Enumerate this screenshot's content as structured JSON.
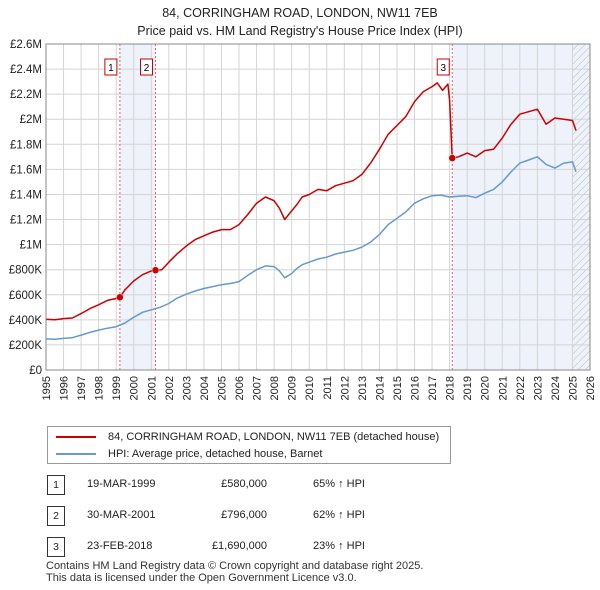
{
  "title_line1": "84, CORRINGHAM ROAD, LONDON, NW11 7EB",
  "title_line2": "Price paid vs. HM Land Registry's House Price Index (HPI)",
  "chart_data": {
    "type": "line",
    "title": "84, CORRINGHAM ROAD, LONDON, NW11 7EB — Price paid vs. HM Land Registry's House Price Index (HPI)",
    "xlim": [
      1995,
      2026
    ],
    "ylim": [
      0,
      2600000
    ],
    "x_ticks": [
      1995,
      1996,
      1997,
      1998,
      1999,
      2000,
      2001,
      2002,
      2003,
      2004,
      2005,
      2006,
      2007,
      2008,
      2009,
      2010,
      2011,
      2012,
      2013,
      2014,
      2015,
      2016,
      2017,
      2018,
      2019,
      2020,
      2021,
      2022,
      2023,
      2024,
      2025,
      2026
    ],
    "y_ticks": [
      {
        "value": 0,
        "label": "£0"
      },
      {
        "value": 200000,
        "label": "£200K"
      },
      {
        "value": 400000,
        "label": "£400K"
      },
      {
        "value": 600000,
        "label": "£600K"
      },
      {
        "value": 800000,
        "label": "£800K"
      },
      {
        "value": 1000000,
        "label": "£1M"
      },
      {
        "value": 1200000,
        "label": "£1.2M"
      },
      {
        "value": 1400000,
        "label": "£1.4M"
      },
      {
        "value": 1600000,
        "label": "£1.6M"
      },
      {
        "value": 1800000,
        "label": "£1.8M"
      },
      {
        "value": 2000000,
        "label": "£2M"
      },
      {
        "value": 2200000,
        "label": "£2.2M"
      },
      {
        "value": 2400000,
        "label": "£2.4M"
      },
      {
        "value": 2600000,
        "label": "£2.6M"
      }
    ],
    "colors": {
      "property": "#cc0000",
      "hpi": "#6699cc",
      "shade": "#eef2fb",
      "grid": "#d4d4d4"
    },
    "series": [
      {
        "name": "84, CORRINGHAM ROAD, LONDON, NW11 7EB (detached house)",
        "color": "#cc0000",
        "x": [
          1995.0,
          1995.5,
          1996.0,
          1996.5,
          1997.0,
          1997.5,
          1998.0,
          1998.5,
          1999.0,
          1999.21,
          1999.5,
          2000.0,
          2000.5,
          2001.0,
          2001.24,
          2001.6,
          2002.0,
          2002.5,
          2003.0,
          2003.5,
          2004.0,
          2004.5,
          2005.0,
          2005.5,
          2006.0,
          2006.5,
          2007.0,
          2007.5,
          2008.0,
          2008.3,
          2008.6,
          2009.0,
          2009.3,
          2009.6,
          2010.0,
          2010.5,
          2011.0,
          2011.5,
          2012.0,
          2012.5,
          2013.0,
          2013.5,
          2014.0,
          2014.5,
          2015.0,
          2015.5,
          2016.0,
          2016.5,
          2017.0,
          2017.3,
          2017.6,
          2017.9,
          2018.0,
          2018.15,
          2018.5,
          2019.0,
          2019.5,
          2020.0,
          2020.5,
          2021.0,
          2021.5,
          2022.0,
          2022.5,
          2023.0,
          2023.5,
          2024.0,
          2024.5,
          2025.0,
          2025.2
        ],
        "values": [
          405000,
          400000,
          410000,
          415000,
          450000,
          490000,
          520000,
          555000,
          570000,
          580000,
          640000,
          710000,
          760000,
          790000,
          796000,
          800000,
          860000,
          930000,
          990000,
          1040000,
          1070000,
          1100000,
          1120000,
          1120000,
          1160000,
          1240000,
          1330000,
          1380000,
          1350000,
          1290000,
          1200000,
          1270000,
          1320000,
          1380000,
          1400000,
          1440000,
          1430000,
          1470000,
          1490000,
          1510000,
          1560000,
          1650000,
          1760000,
          1880000,
          1950000,
          2020000,
          2140000,
          2220000,
          2260000,
          2290000,
          2230000,
          2280000,
          2150000,
          1690000,
          1700000,
          1730000,
          1700000,
          1750000,
          1760000,
          1850000,
          1960000,
          2040000,
          2060000,
          2080000,
          1960000,
          2010000,
          2000000,
          1990000,
          1910000
        ]
      },
      {
        "name": "HPI: Average price, detached house, Barnet",
        "color": "#6699cc",
        "x": [
          1995.0,
          1995.5,
          1996.0,
          1996.5,
          1997.0,
          1997.5,
          1998.0,
          1998.5,
          1999.0,
          1999.5,
          2000.0,
          2000.5,
          2001.0,
          2001.5,
          2002.0,
          2002.5,
          2003.0,
          2003.5,
          2004.0,
          2004.5,
          2005.0,
          2005.5,
          2006.0,
          2006.5,
          2007.0,
          2007.5,
          2008.0,
          2008.3,
          2008.6,
          2009.0,
          2009.3,
          2009.6,
          2010.0,
          2010.5,
          2011.0,
          2011.5,
          2012.0,
          2012.5,
          2013.0,
          2013.5,
          2014.0,
          2014.5,
          2015.0,
          2015.5,
          2016.0,
          2016.5,
          2017.0,
          2017.5,
          2018.0,
          2018.5,
          2019.0,
          2019.5,
          2020.0,
          2020.5,
          2021.0,
          2021.5,
          2022.0,
          2022.5,
          2023.0,
          2023.5,
          2024.0,
          2024.5,
          2025.0,
          2025.2
        ],
        "values": [
          248000,
          245000,
          252000,
          258000,
          278000,
          300000,
          318000,
          333000,
          345000,
          375000,
          420000,
          460000,
          480000,
          500000,
          530000,
          575000,
          605000,
          630000,
          650000,
          665000,
          680000,
          690000,
          705000,
          755000,
          800000,
          830000,
          825000,
          790000,
          735000,
          770000,
          810000,
          840000,
          860000,
          885000,
          900000,
          925000,
          940000,
          955000,
          980000,
          1020000,
          1080000,
          1160000,
          1210000,
          1260000,
          1330000,
          1365000,
          1390000,
          1395000,
          1380000,
          1385000,
          1390000,
          1375000,
          1410000,
          1440000,
          1500000,
          1580000,
          1650000,
          1675000,
          1700000,
          1640000,
          1610000,
          1650000,
          1660000,
          1580000
        ]
      }
    ],
    "sale_markers": [
      {
        "label": "1",
        "x": 1999.21,
        "value": 580000
      },
      {
        "label": "2",
        "x": 2001.24,
        "value": 796000
      },
      {
        "label": "3",
        "x": 2018.15,
        "value": 1690000
      }
    ],
    "shaded_spans": [
      [
        1999.21,
        2001.24
      ],
      [
        2018.15,
        2026
      ]
    ],
    "hatched_span": [
      2025.0,
      2026
    ]
  },
  "legend": {
    "property_label": "84, CORRINGHAM ROAD, LONDON, NW11 7EB (detached house)",
    "hpi_label": "HPI: Average price, detached house, Barnet"
  },
  "transactions": [
    {
      "num": "1",
      "date": "19-MAR-1999",
      "price": "£580,000",
      "hpi": "65% ↑ HPI"
    },
    {
      "num": "2",
      "date": "30-MAR-2001",
      "price": "£796,000",
      "hpi": "62% ↑ HPI"
    },
    {
      "num": "3",
      "date": "23-FEB-2018",
      "price": "£1,690,000",
      "hpi": "23% ↑ HPI"
    }
  ],
  "footer_line1": "Contains HM Land Registry data © Crown copyright and database right 2025.",
  "footer_line2": "This data is licensed under the Open Government Licence v3.0."
}
